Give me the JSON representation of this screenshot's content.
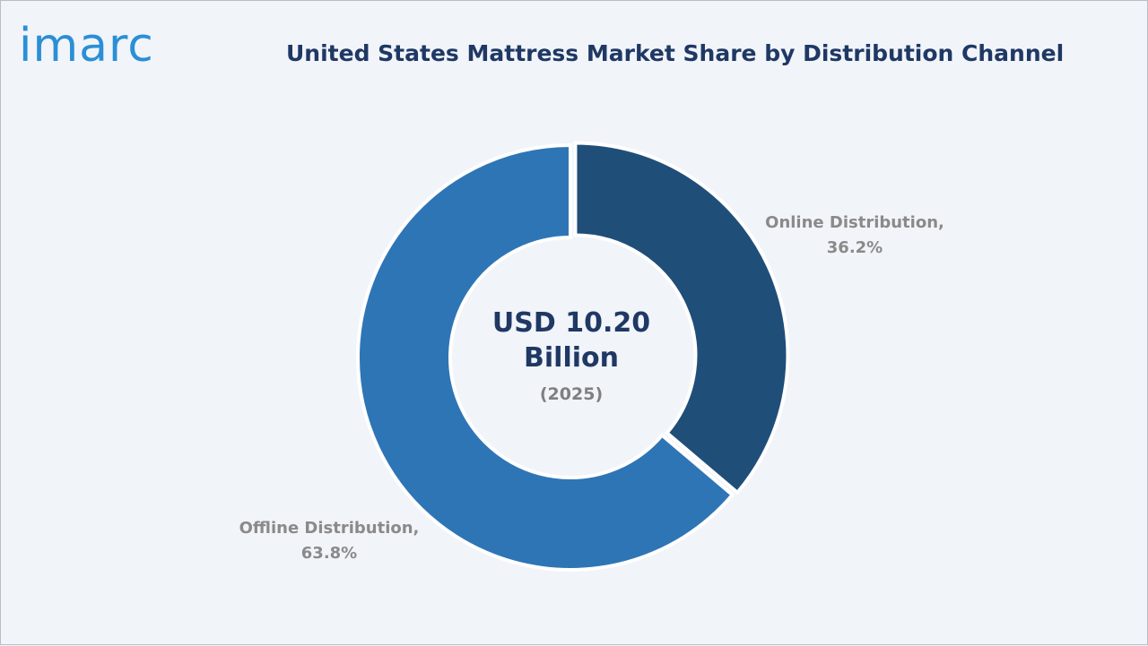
{
  "logo": {
    "text": "imarc"
  },
  "chart_data": {
    "type": "pie",
    "variant": "donut",
    "title": "United States Mattress Market Share by Distribution Channel",
    "center_text": {
      "value": "USD 10.20 Billion",
      "year": "(2025)"
    },
    "slices": [
      {
        "label": "Online Distribution,",
        "value": 36.2,
        "value_text": "36.2%",
        "color": "#1f4e79"
      },
      {
        "label": "Offline Distribution,",
        "value": 63.8,
        "value_text": "63.8%",
        "color": "#2e75b6"
      }
    ]
  },
  "colors": {
    "background": "#f1f4f9",
    "title": "#1f3864",
    "logo": "#2a8fd6",
    "label": "#8a8a8a"
  }
}
